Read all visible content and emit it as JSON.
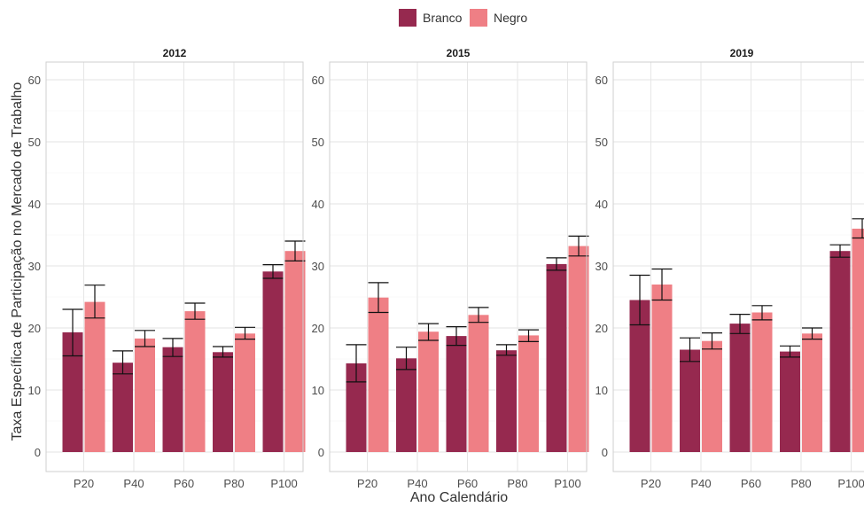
{
  "legend": {
    "items": [
      {
        "label": "Branco",
        "color": "#96294f"
      },
      {
        "label": "Negro",
        "color": "#ef7f85"
      }
    ]
  },
  "axes": {
    "xlabel": "Ano Calendário",
    "ylabel": "Taxa Específica de Participação no Mercado de Trabalho"
  },
  "chart_data": {
    "type": "bar",
    "title": "",
    "xlabel": "Ano Calendário",
    "ylabel": "Taxa Específica de Participação no Mercado de Trabalho",
    "ylim": [
      0,
      62
    ],
    "yticks": [
      0,
      10,
      20,
      30,
      40,
      50,
      60
    ],
    "grid": true,
    "legend_position": "top",
    "categories": [
      "P20",
      "P40",
      "P60",
      "P80",
      "P100"
    ],
    "panels": [
      {
        "title": "2012",
        "series": [
          {
            "name": "Branco",
            "color": "#96294f",
            "values": [
              19.3,
              14.4,
              16.9,
              16.1,
              29.1
            ],
            "err_low": [
              15.5,
              12.6,
              15.4,
              15.3,
              28.0
            ],
            "err_high": [
              23.0,
              16.3,
              18.3,
              17.0,
              30.2
            ]
          },
          {
            "name": "Negro",
            "color": "#ef7f85",
            "values": [
              24.2,
              18.3,
              22.7,
              19.1,
              32.4
            ],
            "err_low": [
              21.6,
              17.0,
              21.4,
              18.2,
              30.8
            ],
            "err_high": [
              26.9,
              19.6,
              24.0,
              20.1,
              34.0
            ]
          }
        ]
      },
      {
        "title": "2015",
        "series": [
          {
            "name": "Branco",
            "color": "#96294f",
            "values": [
              14.3,
              15.1,
              18.7,
              16.4,
              30.3
            ],
            "err_low": [
              11.3,
              13.3,
              17.2,
              15.6,
              29.3
            ],
            "err_high": [
              17.3,
              16.9,
              20.2,
              17.3,
              31.3
            ]
          },
          {
            "name": "Negro",
            "color": "#ef7f85",
            "values": [
              24.9,
              19.4,
              22.1,
              18.8,
              33.2
            ],
            "err_low": [
              22.5,
              18.0,
              20.9,
              17.8,
              31.6
            ],
            "err_high": [
              27.3,
              20.7,
              23.3,
              19.7,
              34.8
            ]
          }
        ]
      },
      {
        "title": "2019",
        "series": [
          {
            "name": "Branco",
            "color": "#96294f",
            "values": [
              24.5,
              16.5,
              20.7,
              16.2,
              32.4
            ],
            "err_low": [
              20.5,
              14.6,
              19.1,
              15.3,
              31.4
            ],
            "err_high": [
              28.5,
              18.4,
              22.2,
              17.1,
              33.4
            ]
          },
          {
            "name": "Negro",
            "color": "#ef7f85",
            "values": [
              27.0,
              17.9,
              22.5,
              19.1,
              36.0
            ],
            "err_low": [
              24.5,
              16.6,
              21.3,
              18.2,
              34.5
            ],
            "err_high": [
              29.5,
              19.2,
              23.6,
              20.0,
              37.6
            ]
          }
        ]
      }
    ]
  }
}
